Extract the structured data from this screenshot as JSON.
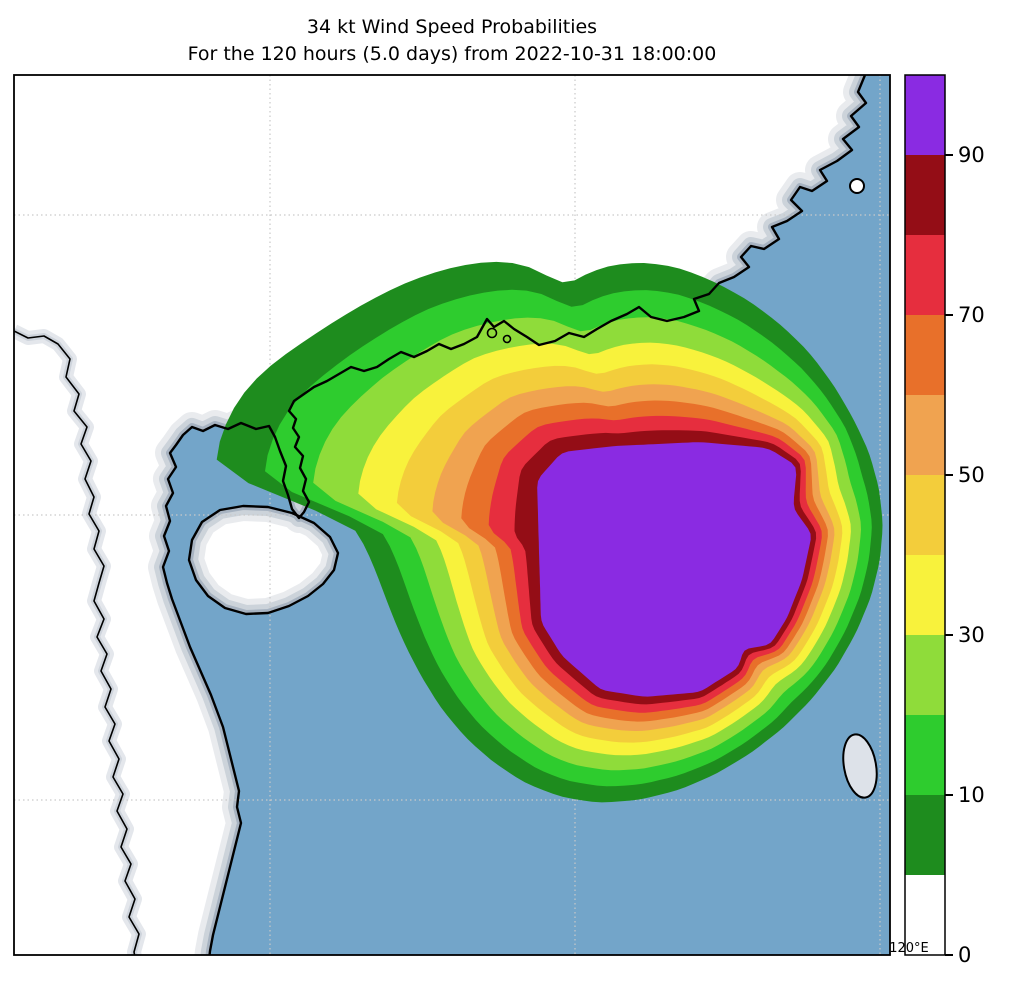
{
  "title": {
    "line1": "34 kt Wind Speed Probabilities",
    "line2": "For the 120 hours (5.0 days) from 2022-10-31 18:00:00"
  },
  "map": {
    "gridline_label": "120°E"
  },
  "colors": {
    "ocean": "#73a5c9",
    "land": "#ffffff",
    "coastline": "#000000",
    "gridline": "#c9c9c9",
    "frame": "#000000",
    "coast_shade_outer": "#e9ebee",
    "coast_shade_mid": "#ccd3da",
    "coast_shade_inner": "#a7b3c1",
    "island_fill": "#dde2e9"
  },
  "colorbar": {
    "ticks": [
      0,
      10,
      30,
      50,
      70,
      90
    ]
  },
  "chart_data": {
    "type": "heatmap",
    "subtype": "filled_contour_probability_map",
    "title": "34 kt Wind Speed Probabilities",
    "subtitle": "For the 120 hours (5.0 days) from 2022-10-31 18:00:00",
    "quantity": "probability of 34 kt winds (%)",
    "wind_threshold_kt": 34,
    "valid_period_hours": 120,
    "valid_period_days": 5.0,
    "start_time": "2022-10-31 18:00:00",
    "colorbar_ticks": [
      0,
      10,
      30,
      50,
      70,
      90
    ],
    "bands": [
      {
        "from": 0,
        "to": 5,
        "color": "#ffffff"
      },
      {
        "from": 5,
        "to": 10,
        "color": "#1e8c1e"
      },
      {
        "from": 10,
        "to": 20,
        "color": "#2ecc2e"
      },
      {
        "from": 20,
        "to": 30,
        "color": "#8fdc3a"
      },
      {
        "from": 30,
        "to": 40,
        "color": "#f8f23c"
      },
      {
        "from": 40,
        "to": 50,
        "color": "#f3cd3b"
      },
      {
        "from": 50,
        "to": 60,
        "color": "#f0a350"
      },
      {
        "from": 60,
        "to": 70,
        "color": "#e8702a"
      },
      {
        "from": 70,
        "to": 80,
        "color": "#e62e3e"
      },
      {
        "from": 80,
        "to": 90,
        "color": "#940d16"
      },
      {
        "from": 90,
        "to": 100,
        "color": "#8a2be2"
      }
    ],
    "max_band_percent": ">90",
    "grid": "dashed",
    "legend_position": "right-colorbar",
    "x_axis_visible_label": "120°E"
  }
}
